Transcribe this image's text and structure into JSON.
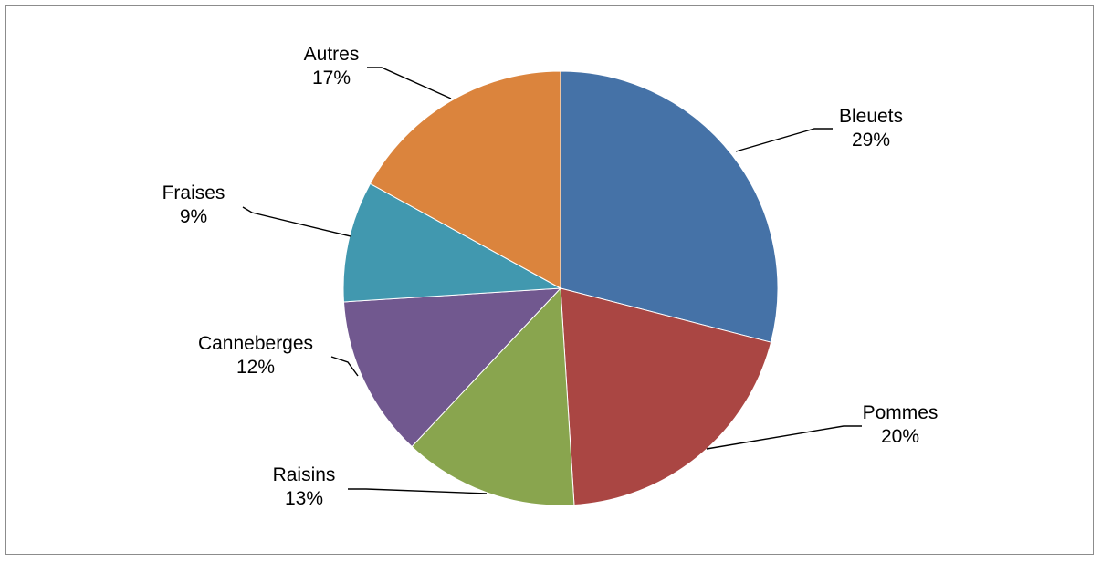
{
  "chart_data": {
    "type": "pie",
    "categories": [
      "Bleuets",
      "Pommes",
      "Raisins",
      "Canneberges",
      "Fraises",
      "Autres"
    ],
    "values": [
      29,
      20,
      13,
      12,
      9,
      17
    ],
    "labels": [
      "29%",
      "20%",
      "13%",
      "12%",
      "9%",
      "17%"
    ],
    "colors": [
      "#4572a7",
      "#aa4643",
      "#89a54e",
      "#71588f",
      "#4198af",
      "#db843d"
    ],
    "start_angle_deg": 0,
    "direction": "clockwise",
    "legend": "none",
    "data_labels": "outside with leader lines"
  }
}
